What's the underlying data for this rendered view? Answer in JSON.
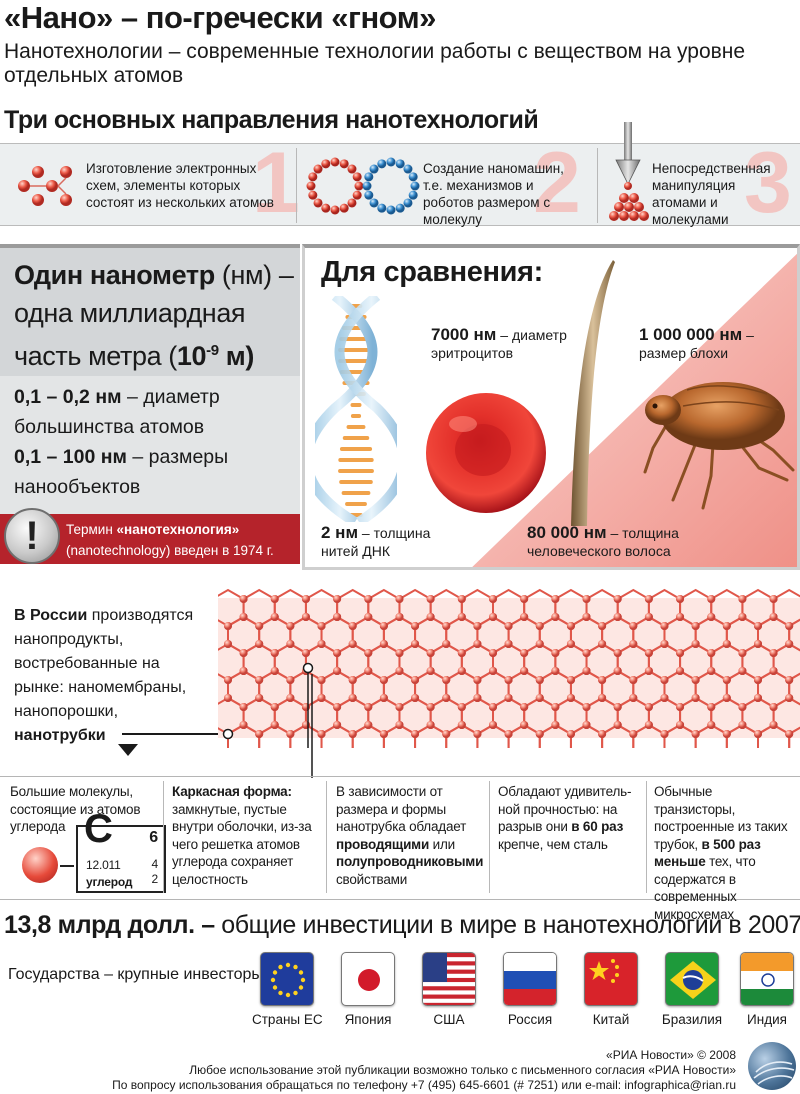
{
  "header": {
    "title": "«Нано» – по-гречески «гном»",
    "subtitle": "Нанотехнологии – современные технологии работы с веществом на уровне отдельных атомов",
    "directions_heading": "Три основных направления нанотехнологий"
  },
  "directions": [
    {
      "number": "1",
      "text": "Изготовление электронных схем, элементы которых состоят из нескольких атомов"
    },
    {
      "number": "2",
      "text": "Создание наномашин, т.е. механизмов и роботов размером с молекулу"
    },
    {
      "number": "3",
      "text": "Непосредственная манипуляция атомами и молекулами"
    }
  ],
  "nanometer": {
    "bold": "Один нанометр",
    "unit": " (нм) –",
    "rest": "одна миллиардная часть метра (",
    "power": "10",
    "exponent": "-9",
    "m": " м)",
    "fact1_bold": "0,1 – 0,2 нм",
    "fact1_rest": " – диаметр большинства атомов",
    "fact2_bold": "0,1 – 100 нм",
    "fact2_rest": " – размеры нанообъектов",
    "term_prefix": "Термин ",
    "term_bold": "«нанотехнология»",
    "term_rest": " (nanotechnology) введен в 1974 г."
  },
  "comparison": {
    "title": "Для сравнения:",
    "rbc_value": "7000 нм",
    "rbc_text": " – диаметр эритроцитов",
    "flea_value": "1 000 000 нм",
    "flea_text": " – размер блохи",
    "dna_value": "2 нм",
    "dna_text": " – толщина нитей ДНК",
    "hair_value": "80 000 нм",
    "hair_text": " – толщина человеческого волоса"
  },
  "russia": {
    "bold": "В России",
    "text": " производятся нанопродукты, востребованные на рынке: наномембраны, нанопорошки,",
    "last": "нанотрубки"
  },
  "facts": {
    "f1": "Большие молекулы, состоящие из атомов углерода",
    "element_symbol": "C",
    "element_number": "6",
    "element_mass": "12.011",
    "element_name": "углерод",
    "element_shell1": "4",
    "element_shell2": "2",
    "f2_bold": "Каркасная форма:",
    "f2_text": " замкнутые, пустые внутри оболочки, из-за чего решетка атомов углерода сохраняет целостность",
    "f3_a": "В зависимости от размера и формы нанотрубка обладает ",
    "f3_b1": "проводящими",
    "f3_c": " или ",
    "f3_b2": "полупроводниковыми",
    "f3_d": " свойствами",
    "f4_a": "Обладают удивитель-ной прочностью: на разрыв они ",
    "f4_b": "в 60 раз",
    "f4_c": " крепче, чем сталь",
    "f5_a": "Обычные транзисторы, построенные из таких трубок, ",
    "f5_b": "в 500 раз меньше",
    "f5_c": " тех, что содержатся в современных микросхемах"
  },
  "investment": {
    "bold": "13,8 млрд долл. –",
    "text": " общие инвестиции в мире в нанотехнологии в 2007 г.",
    "investors_label": "Государства – крупные инвесторы:",
    "countries": [
      "Страны ЕС",
      "Япония",
      "США",
      "Россия",
      "Китай",
      "Бразилия",
      "Индия"
    ]
  },
  "footer": {
    "copyright": "«РИА Новости» © 2008",
    "line2": "Любое использование этой публикации возможно только с письменного согласия «РИА Новости»",
    "line3": "По вопросу использования обращаться по телефону +7 (495) 645-6601 (# 7251) или е-mail: infographica@rian.ru"
  },
  "colors": {
    "accent_red": "#c8202a",
    "strip_red": "#b5232b",
    "panel_gray": "#e3e5e6",
    "number_pink": "#f2c5c2"
  },
  "icons": [
    "atom-cluster-icon",
    "ring-icon",
    "probe-icon",
    "warning-icon",
    "dna-icon",
    "red-blood-cell-icon",
    "hair-icon",
    "flea-icon",
    "nanotube-icon",
    "carbon-atom-icon",
    "flag-icons",
    "rian-logo"
  ]
}
